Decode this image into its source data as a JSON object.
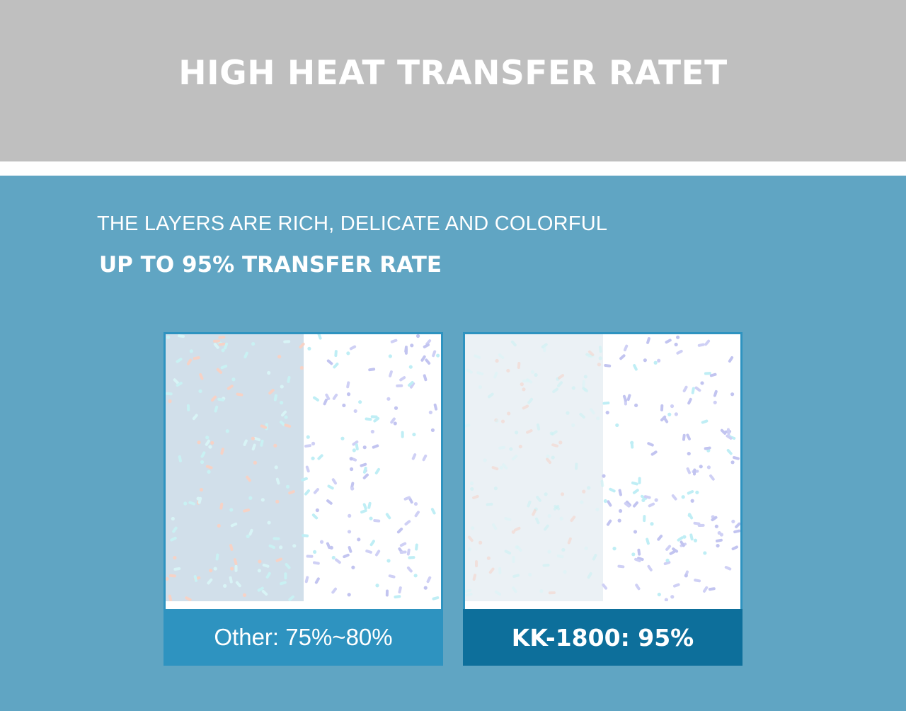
{
  "header": {
    "title": "HIGH HEAT TRANSFER RATET"
  },
  "section": {
    "subtitle": "THE LAYERS ARE RICH, DELICATE AND COLORFUL",
    "headline": "UP TO 95% TRANSFER RATE"
  },
  "panels": [
    {
      "caption": "Other: 75%~80%"
    },
    {
      "caption": "KK-1800: 95%"
    }
  ]
}
